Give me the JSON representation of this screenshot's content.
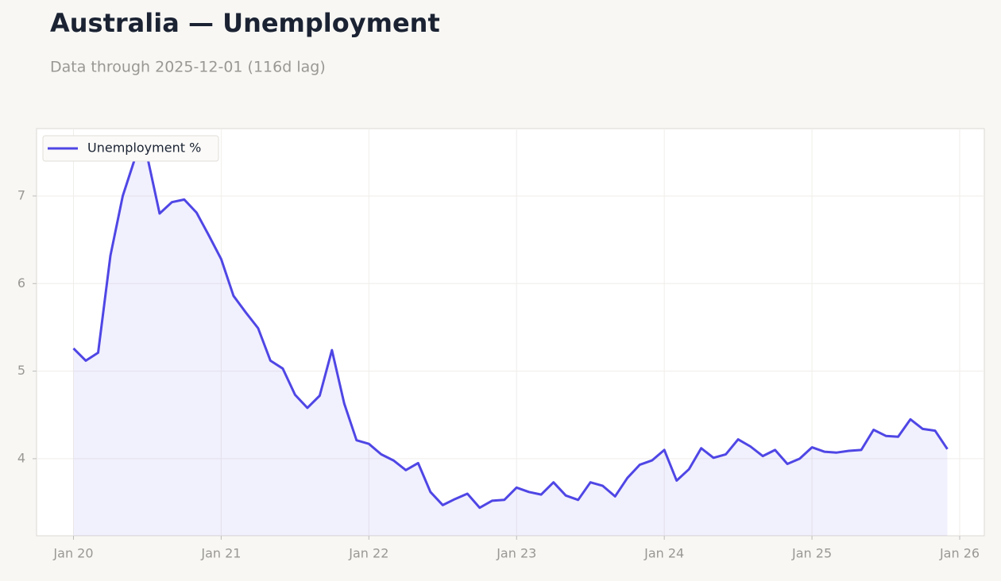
{
  "chart_data": {
    "type": "line",
    "title": "Australia — Unemployment",
    "subtitle": "Data through 2025-12-01 (116d lag)",
    "x": [
      "2020-01",
      "2020-02",
      "2020-03",
      "2020-04",
      "2020-05",
      "2020-06",
      "2020-07",
      "2020-08",
      "2020-09",
      "2020-10",
      "2020-11",
      "2020-12",
      "2021-01",
      "2021-02",
      "2021-03",
      "2021-04",
      "2021-05",
      "2021-06",
      "2021-07",
      "2021-08",
      "2021-09",
      "2021-10",
      "2021-11",
      "2021-12",
      "2022-01",
      "2022-02",
      "2022-03",
      "2022-04",
      "2022-05",
      "2022-06",
      "2022-07",
      "2022-08",
      "2022-09",
      "2022-10",
      "2022-11",
      "2022-12",
      "2023-01",
      "2023-02",
      "2023-03",
      "2023-04",
      "2023-05",
      "2023-06",
      "2023-07",
      "2023-08",
      "2023-09",
      "2023-10",
      "2023-11",
      "2023-12",
      "2024-01",
      "2024-02",
      "2024-03",
      "2024-04",
      "2024-05",
      "2024-06",
      "2024-07",
      "2024-08",
      "2024-09",
      "2024-10",
      "2024-11",
      "2024-12",
      "2025-01",
      "2025-02",
      "2025-03",
      "2025-04",
      "2025-05",
      "2025-06",
      "2025-07",
      "2025-08",
      "2025-09",
      "2025-10",
      "2025-11",
      "2025-12"
    ],
    "series": [
      {
        "name": "Unemployment %",
        "color": "#4f46e5",
        "values": [
          5.26,
          5.12,
          5.21,
          6.32,
          7.0,
          7.43,
          7.45,
          6.8,
          6.93,
          6.96,
          6.81,
          6.55,
          6.28,
          5.86,
          5.67,
          5.49,
          5.12,
          5.03,
          4.73,
          4.58,
          4.72,
          5.24,
          4.63,
          4.21,
          4.17,
          4.05,
          3.98,
          3.87,
          3.95,
          3.62,
          3.47,
          3.54,
          3.6,
          3.44,
          3.52,
          3.53,
          3.67,
          3.62,
          3.59,
          3.73,
          3.58,
          3.53,
          3.73,
          3.69,
          3.57,
          3.78,
          3.93,
          3.98,
          4.1,
          3.75,
          3.88,
          4.12,
          4.01,
          4.05,
          4.22,
          4.14,
          4.03,
          4.1,
          3.94,
          4.0,
          4.13,
          4.08,
          4.07,
          4.09,
          4.1,
          4.33,
          4.26,
          4.25,
          4.45,
          4.34,
          4.32,
          4.11
        ]
      }
    ],
    "xlim": [
      "2019-10",
      "2026-03"
    ],
    "xticks": [
      {
        "value": "2020-01",
        "label": "Jan 20"
      },
      {
        "value": "2021-01",
        "label": "Jan 21"
      },
      {
        "value": "2022-01",
        "label": "Jan 22"
      },
      {
        "value": "2023-01",
        "label": "Jan 23"
      },
      {
        "value": "2024-01",
        "label": "Jan 24"
      },
      {
        "value": "2025-01",
        "label": "Jan 25"
      },
      {
        "value": "2026-01",
        "label": "Jan 26"
      }
    ],
    "ylim": [
      3.12,
      7.77
    ],
    "yticks": [
      4,
      5,
      6,
      7
    ],
    "grid": true,
    "legend": "upper-left"
  }
}
